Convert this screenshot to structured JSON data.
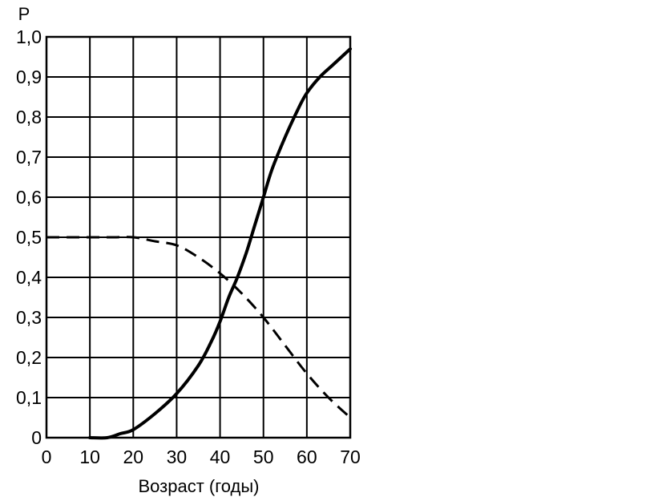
{
  "chart_data": {
    "type": "line",
    "ylabel": "P",
    "xlabel": "Возраст (годы)",
    "xlim": [
      0,
      70
    ],
    "ylim": [
      0,
      1
    ],
    "grid": true,
    "x_ticks": [
      0,
      10,
      20,
      30,
      40,
      50,
      60,
      70
    ],
    "x_tick_labels": [
      "0",
      "10",
      "20",
      "30",
      "40",
      "50",
      "60",
      "70"
    ],
    "y_ticks": [
      0,
      0.1,
      0.2,
      0.3,
      0.4,
      0.5,
      0.6,
      0.7,
      0.8,
      0.9,
      1.0
    ],
    "y_tick_labels": [
      "0",
      "0,1",
      "0,2",
      "0,3",
      "0,4",
      "0,5",
      "0,6",
      "0,7",
      "0,8",
      "0,9",
      "1,0"
    ],
    "series": [
      {
        "style": "solid",
        "x": [
          10,
          14,
          17,
          20,
          25,
          30,
          35,
          38,
          40,
          42,
          44,
          46,
          48,
          50,
          52,
          55,
          58,
          60,
          63,
          66,
          70
        ],
        "y": [
          0.0,
          0.0,
          0.01,
          0.02,
          0.06,
          0.11,
          0.18,
          0.24,
          0.29,
          0.35,
          0.4,
          0.46,
          0.53,
          0.6,
          0.67,
          0.75,
          0.82,
          0.86,
          0.9,
          0.93,
          0.97
        ]
      },
      {
        "style": "dashed",
        "x": [
          0,
          5,
          10,
          15,
          20,
          25,
          30,
          35,
          40,
          45,
          50,
          55,
          60,
          65,
          70
        ],
        "y": [
          0.5,
          0.5,
          0.5,
          0.5,
          0.5,
          0.49,
          0.48,
          0.45,
          0.41,
          0.36,
          0.3,
          0.23,
          0.16,
          0.1,
          0.05
        ]
      }
    ]
  }
}
